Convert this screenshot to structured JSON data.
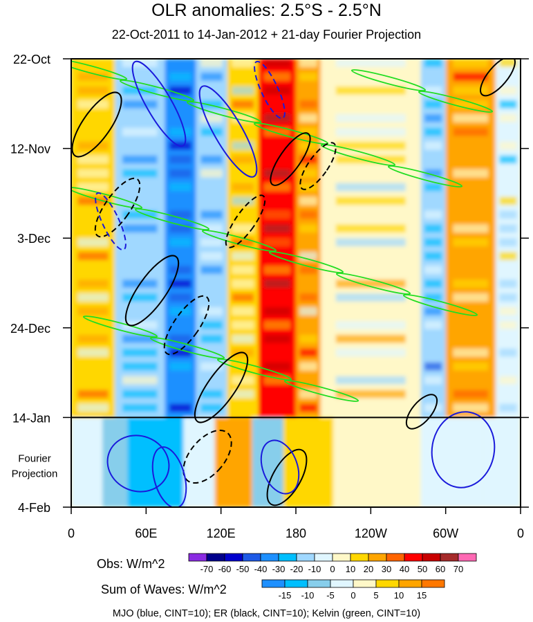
{
  "chart_data": {
    "type": "heatmap",
    "title": "OLR anomalies: 2.5°S - 2.5°N",
    "subtitle": "22-Oct-2011 to 14-Jan-2012 + 21-day Fourier Projection",
    "x_tick_labels": [
      "0",
      "60E",
      "120E",
      "180",
      "120W",
      "60W",
      "0"
    ],
    "x_ticks_deg": [
      0,
      60,
      120,
      180,
      240,
      300,
      360
    ],
    "xlim": [
      0,
      360
    ],
    "y_tick_labels": [
      "22-Oct",
      "12-Nov",
      "3-Dec",
      "24-Dec",
      "14-Jan",
      "4-Feb"
    ],
    "y_ticks_day": [
      0,
      21,
      42,
      63,
      84,
      105
    ],
    "ylim_days": [
      0,
      105
    ],
    "projection_start_day": 84,
    "projection_label": [
      "Fourier",
      "Projection"
    ],
    "obs_colorbar": {
      "label": "Obs: W/m^2",
      "ticks": [
        "-70",
        "-60",
        "-50",
        "-40",
        "-30",
        "-20",
        "-10",
        "0",
        "10",
        "20",
        "30",
        "40",
        "50",
        "60",
        "70"
      ],
      "colors": [
        "#8a2be2",
        "#00008b",
        "#0000cd",
        "#1e5ae6",
        "#1e90ff",
        "#00bfff",
        "#a0d8ff",
        "#e0f6ff",
        "#fff8c8",
        "#ffd700",
        "#ffa500",
        "#ff6400",
        "#ff0000",
        "#c80000",
        "#a52a2a",
        "#ff69b4"
      ]
    },
    "waves_colorbar": {
      "label": "Sum of Waves: W/m^2",
      "ticks": [
        "-15",
        "-10",
        "-5",
        "0",
        "5",
        "10",
        "15"
      ],
      "colors": [
        "#1e90ff",
        "#00bfff",
        "#87ceeb",
        "#e0f6ff",
        "#fff8c8",
        "#ffd700",
        "#ffa500",
        "#ff7800"
      ]
    },
    "footer": "MJO (blue, CINT=10); ER (black, CINT=10); Kelvin (green, CINT=10)",
    "series": [
      {
        "name": "MJO",
        "color": "#1a1adb",
        "contour_interval": 10
      },
      {
        "name": "ER",
        "color": "#000000",
        "contour_interval": 10
      },
      {
        "name": "Kelvin",
        "color": "#22dd22",
        "contour_interval": 10
      }
    ],
    "observed_bands": [
      {
        "lon_start": 0,
        "lon_end": 35,
        "mean": 15
      },
      {
        "lon_start": 35,
        "lon_end": 75,
        "mean": -20
      },
      {
        "lon_start": 75,
        "lon_end": 100,
        "mean": -40
      },
      {
        "lon_start": 100,
        "lon_end": 125,
        "mean": -15
      },
      {
        "lon_start": 125,
        "lon_end": 150,
        "mean": 10
      },
      {
        "lon_start": 150,
        "lon_end": 180,
        "mean": 45
      },
      {
        "lon_start": 180,
        "lon_end": 200,
        "mean": 20
      },
      {
        "lon_start": 200,
        "lon_end": 280,
        "mean": 5
      },
      {
        "lon_start": 280,
        "lon_end": 300,
        "mean": -20
      },
      {
        "lon_start": 300,
        "lon_end": 340,
        "mean": 20
      },
      {
        "lon_start": 340,
        "lon_end": 360,
        "mean": -5
      }
    ]
  }
}
